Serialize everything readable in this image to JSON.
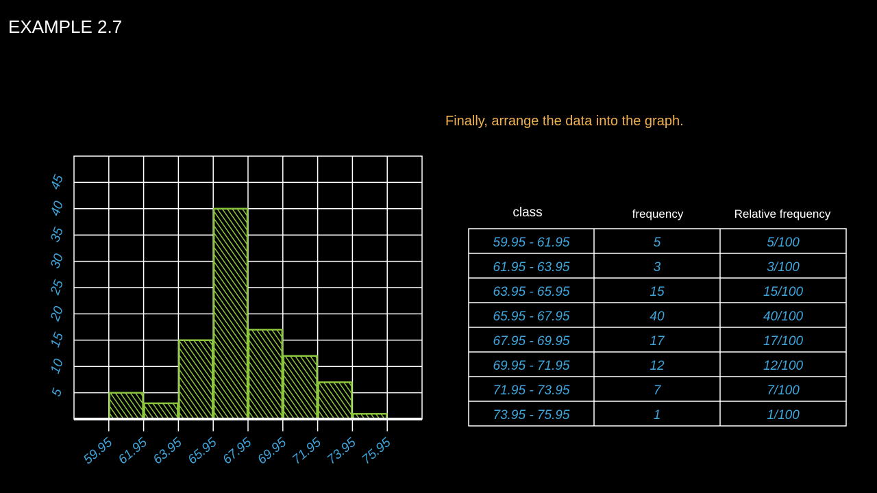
{
  "header": {
    "title": "EXAMPLE 2.7",
    "instruction": "Finally, arrange the data into the graph."
  },
  "chart_data": {
    "type": "histogram",
    "bins": [
      59.95,
      61.95,
      63.95,
      65.95,
      67.95,
      69.95,
      71.95,
      73.95,
      75.95
    ],
    "values": [
      5,
      3,
      15,
      40,
      17,
      12,
      7,
      1
    ],
    "color": "#8cc63f",
    "xlim": [
      57.95,
      77.95
    ],
    "xticks": [
      59.95,
      61.95,
      63.95,
      65.95,
      67.95,
      69.95,
      71.95,
      73.95,
      75.95
    ],
    "ylim": [
      0,
      50
    ],
    "yticks": [
      5,
      10,
      15,
      20,
      25,
      30,
      35,
      40,
      45
    ],
    "grid": true
  },
  "table": {
    "columns": [
      "class",
      "frequency",
      "Relative frequency"
    ],
    "rows": [
      [
        "59.95 - 61.95",
        "5",
        "5/100"
      ],
      [
        "61.95 - 63.95",
        "3",
        "3/100"
      ],
      [
        "63.95 - 65.95",
        "15",
        "15/100"
      ],
      [
        "65.95 - 67.95",
        "40",
        "40/100"
      ],
      [
        "67.95 - 69.95",
        "17",
        "17/100"
      ],
      [
        "69.95 - 71.95",
        "12",
        "12/100"
      ],
      [
        "71.95 - 73.95",
        "7",
        "7/100"
      ],
      [
        "73.95 - 75.95",
        "1",
        "1/100"
      ]
    ]
  }
}
